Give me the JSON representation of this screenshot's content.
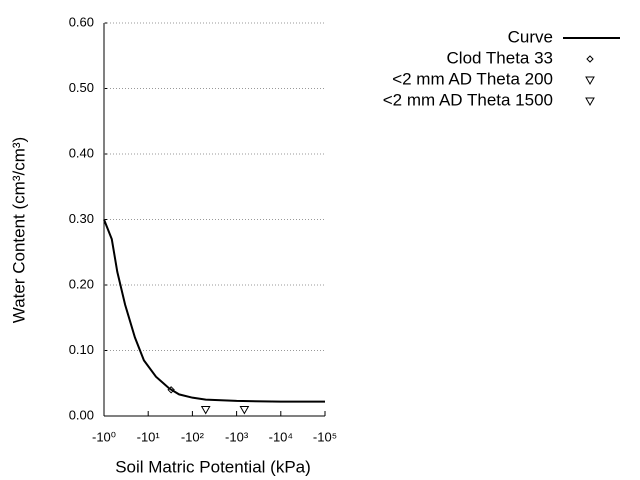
{
  "chart_data": {
    "type": "line",
    "xlabel": "Soil Matric Potential (kPa)",
    "ylabel": "Water Content (cm³/cm³)",
    "xscale": "log",
    "xlim": [
      1,
      100000
    ],
    "xticks": [
      {
        "value": 1,
        "label": "-10⁰"
      },
      {
        "value": 10,
        "label": "-10¹"
      },
      {
        "value": 100,
        "label": "-10²"
      },
      {
        "value": 1000,
        "label": "-10³"
      },
      {
        "value": 10000,
        "label": "-10⁴"
      },
      {
        "value": 100000,
        "label": "-10⁵"
      }
    ],
    "ylim": [
      0,
      0.6
    ],
    "yticks": [
      {
        "value": 0,
        "label": "0.00"
      },
      {
        "value": 0.1,
        "label": "0.10"
      },
      {
        "value": 0.2,
        "label": "0.20"
      },
      {
        "value": 0.3,
        "label": "0.30"
      },
      {
        "value": 0.4,
        "label": "0.40"
      },
      {
        "value": 0.5,
        "label": "0.50"
      },
      {
        "value": 0.6,
        "label": "0.60"
      }
    ],
    "grid": true,
    "legend": "top-right",
    "series": [
      {
        "name": "Curve",
        "color": "#000000",
        "marker": "line",
        "x": [
          1,
          1.5,
          2,
          3,
          5,
          8,
          15,
          30,
          50,
          100,
          200,
          1000,
          10000,
          100000
        ],
        "values": [
          0.3,
          0.27,
          0.22,
          0.17,
          0.12,
          0.085,
          0.06,
          0.042,
          0.033,
          0.028,
          0.025,
          0.023,
          0.022,
          0.022
        ]
      },
      {
        "name": "Clod Theta 33",
        "color": "#000000",
        "marker": "diamond",
        "x": [
          33
        ],
        "values": [
          0.04
        ]
      },
      {
        "name": "<2 mm AD Theta 200",
        "color": "#000000",
        "marker": "triangle-down",
        "x": [
          200
        ],
        "values": [
          0.01
        ]
      },
      {
        "name": "<2 mm AD Theta 1500",
        "color": "#000000",
        "marker": "triangle-down",
        "x": [
          1500
        ],
        "values": [
          0.01
        ]
      }
    ]
  }
}
